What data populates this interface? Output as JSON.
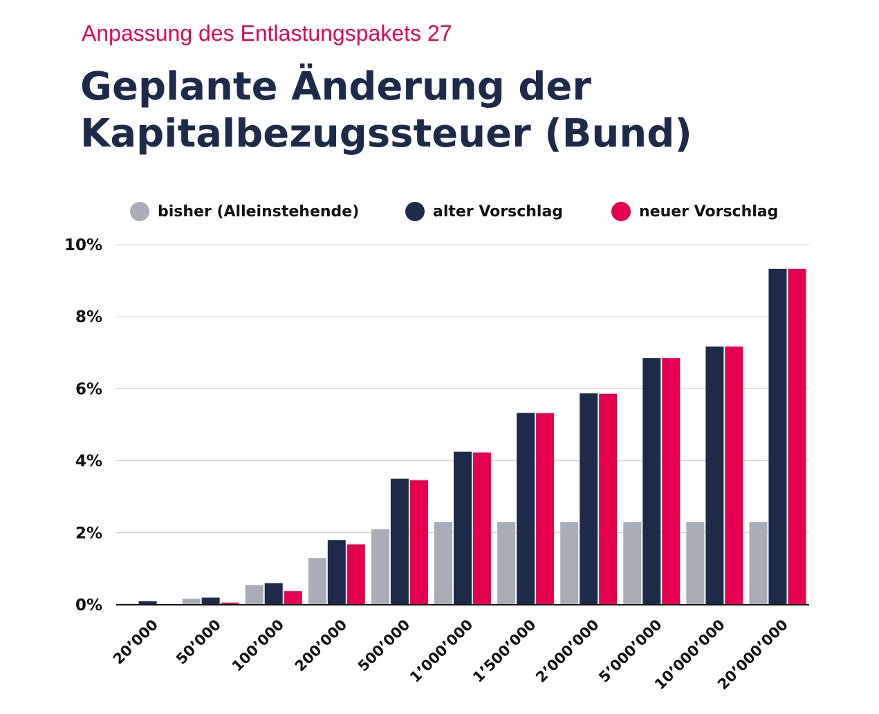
{
  "header": {
    "subtitle": "Anpassung des Entlastungspakets 27",
    "title_line1": "Geplante Änderung der",
    "title_line2": "Kapitalbezugssteuer (Bund)"
  },
  "colors": {
    "bisher": "#a8adb8",
    "alter": "#1e2a4a",
    "neuer": "#e4004f",
    "grid": "#cccccc",
    "axis": "#111111"
  },
  "chart_data": {
    "type": "bar",
    "title": "Geplante Änderung der Kapitalbezugssteuer (Bund)",
    "subtitle": "Anpassung des Entlastungspakets 27",
    "xlabel": "",
    "ylabel": "",
    "ylim": [
      0,
      10
    ],
    "yticks": [
      "0%",
      "2%",
      "4%",
      "6%",
      "8%",
      "10%"
    ],
    "ytick_values": [
      0,
      2,
      4,
      6,
      8,
      10
    ],
    "grid": true,
    "legend_position": "top",
    "categories": [
      "20’000",
      "50’000",
      "100’000",
      "200’000",
      "500’000",
      "1’000’000",
      "1’500’000",
      "2’000’000",
      "5’000’000",
      "10’000’000",
      "20’000’000"
    ],
    "series": [
      {
        "name": "bisher (Alleinstehende)",
        "color": "#a8adb8",
        "values": [
          0.03,
          0.17,
          0.55,
          1.3,
          2.1,
          2.3,
          2.3,
          2.3,
          2.3,
          2.3,
          2.3
        ]
      },
      {
        "name": "alter Vorschlag",
        "color": "#1e2a4a",
        "values": [
          0.1,
          0.2,
          0.6,
          1.8,
          3.5,
          4.25,
          5.33,
          5.87,
          6.85,
          7.17,
          9.33
        ]
      },
      {
        "name": "neuer Vorschlag",
        "color": "#e4004f",
        "values": [
          0.0,
          0.06,
          0.38,
          1.68,
          3.46,
          4.23,
          5.32,
          5.86,
          6.85,
          7.17,
          9.33
        ]
      }
    ]
  }
}
